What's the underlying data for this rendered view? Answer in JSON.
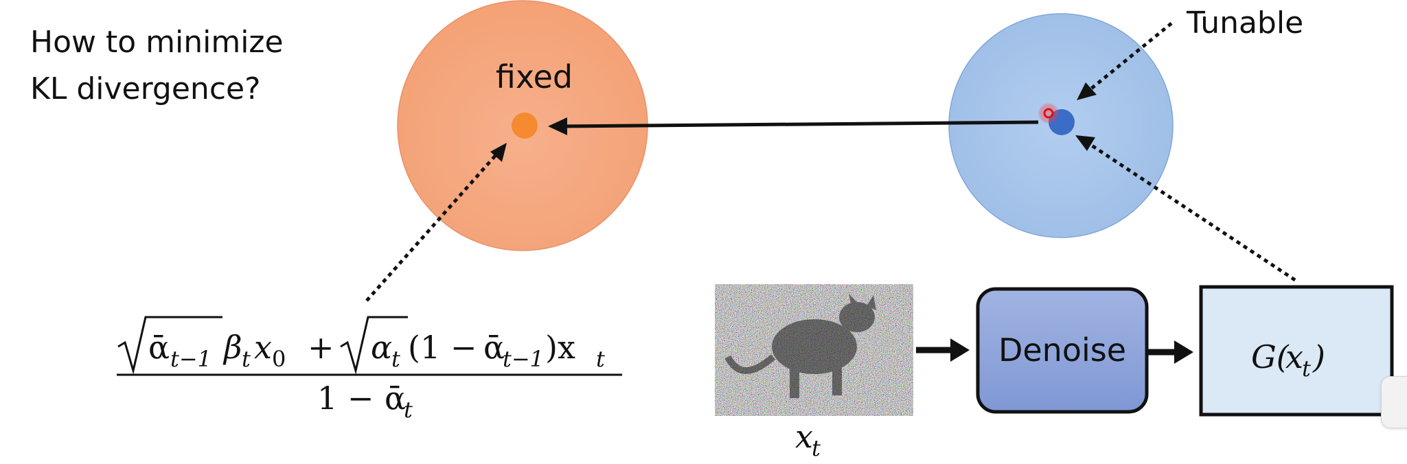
{
  "question": {
    "line1": "How to minimize",
    "line2": "KL divergence?"
  },
  "fixed_distribution": {
    "label": "fixed",
    "color": "#f5a57a",
    "point_color": "#f58a30"
  },
  "tunable_distribution": {
    "label": "Tunable",
    "color": "#a8c4ea",
    "point_color": "#3a6cc8"
  },
  "formula": {
    "numerator_part1": "β",
    "numerator_x0": "x",
    "numerator_part2": "(1 − ",
    "numerator_part3": ")x",
    "denominator": "1 − ",
    "alpha_bar": "ᾱ",
    "alpha": "α",
    "sub_t": "t",
    "sub_t1": "t−1",
    "sub_0": "0"
  },
  "noisy_image": {
    "caption_var": "x",
    "caption_sub": "t"
  },
  "denoise_block": {
    "label": "Denoise",
    "color": "#8fa6dc"
  },
  "output_block": {
    "label_prefix": "G(",
    "label_var": "x",
    "label_sub": "t",
    "label_suffix": ")",
    "color": "#dbe8f6"
  }
}
